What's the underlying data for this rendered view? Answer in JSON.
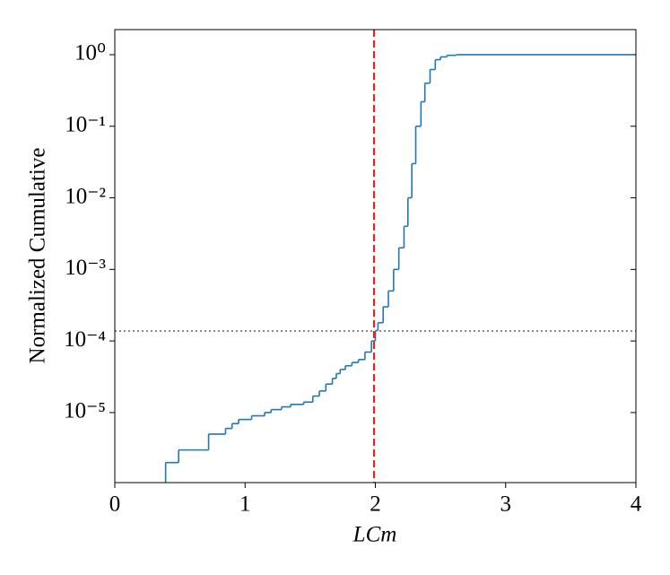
{
  "chart_data": {
    "type": "step",
    "xlabel": "LCm",
    "ylabel": "Normalized Cumulative",
    "log_y": true,
    "xlim": [
      0,
      4
    ],
    "xticks": [
      0,
      1,
      2,
      3,
      4
    ],
    "ylim": [
      1.05e-06,
      2.24
    ],
    "yticks": [
      {
        "value": 1e-05,
        "label": "10⁻⁵"
      },
      {
        "value": 0.0001,
        "label": "10⁻⁴"
      },
      {
        "value": 0.001,
        "label": "10⁻³"
      },
      {
        "value": 0.01,
        "label": "10⁻²"
      },
      {
        "value": 0.1,
        "label": "10⁻¹"
      },
      {
        "value": 1,
        "label": "10⁰"
      }
    ],
    "series": [
      {
        "color": "#1f77b4",
        "x": [
          0.39,
          0.49,
          0.72,
          0.85,
          0.9,
          0.95,
          1.05,
          1.15,
          1.2,
          1.28,
          1.35,
          1.45,
          1.52,
          1.57,
          1.62,
          1.67,
          1.7,
          1.73,
          1.77,
          1.82,
          1.87,
          1.92,
          1.97,
          2.0,
          2.02,
          2.06,
          2.1,
          2.14,
          2.18,
          2.22,
          2.25,
          2.28,
          2.31,
          2.35,
          2.38,
          2.42,
          2.46,
          2.5,
          2.55,
          2.62,
          4
        ],
        "values": [
          2e-06,
          3e-06,
          5e-06,
          6e-06,
          7e-06,
          8e-06,
          9e-06,
          1e-05,
          1.1e-05,
          1.2e-05,
          1.3e-05,
          1.4e-05,
          1.7e-05,
          2e-05,
          2.5e-05,
          3e-05,
          3.5e-05,
          4e-05,
          4.5e-05,
          5e-05,
          5.5e-05,
          7e-05,
          0.0001,
          0.00014,
          0.00018,
          0.0003,
          0.0005,
          0.001,
          0.002,
          0.004,
          0.01,
          0.03,
          0.1,
          0.22,
          0.4,
          0.62,
          0.85,
          0.93,
          0.98,
          1.0,
          1.0
        ]
      }
    ],
    "vline": {
      "value": 1.99,
      "color": "#e8201e"
    },
    "hline": {
      "value": 0.000138,
      "color": "#888888"
    }
  }
}
